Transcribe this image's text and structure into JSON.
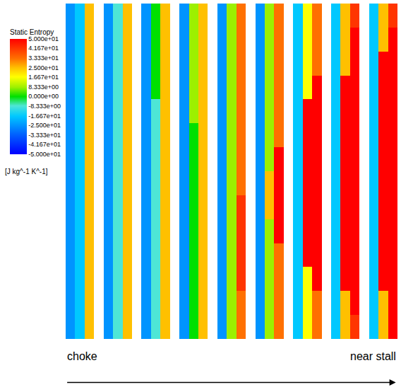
{
  "chart_data": {
    "type": "heatmap",
    "colorbar": {
      "title": "Static Entropy",
      "unit": "[J kg^-1 K^-1]",
      "range": [
        -50,
        50
      ],
      "ticks": [
        {
          "value": 50,
          "label": "5.000e+01"
        },
        {
          "value": 41.67,
          "label": "4.167e+01"
        },
        {
          "value": 33.33,
          "label": "3.333e+01"
        },
        {
          "value": 25,
          "label": "2.500e+01"
        },
        {
          "value": 16.67,
          "label": "1.667e+01"
        },
        {
          "value": 8.333,
          "label": "8.333e+00"
        },
        {
          "value": 0,
          "label": "0.000e+00"
        },
        {
          "value": -8.333,
          "label": "-8.333e+00"
        },
        {
          "value": -16.67,
          "label": "-1.667e+01"
        },
        {
          "value": -25,
          "label": "-2.500e+01"
        },
        {
          "value": -33.33,
          "label": "-3.333e+01"
        },
        {
          "value": -41.67,
          "label": "-4.167e+01"
        },
        {
          "value": -50,
          "label": "-5.000e+01"
        }
      ]
    },
    "tick_labels": false,
    "annotations": [
      "choke",
      "near stall"
    ],
    "cells": [
      [
        -25,
        -17,
        25,
        null,
        -25,
        -8,
        25,
        null,
        -25,
        0,
        25,
        null,
        -25,
        8,
        25,
        null,
        -25,
        8,
        33,
        null,
        -25,
        8,
        33,
        null,
        -17,
        17,
        33,
        null,
        -17,
        25,
        42,
        null,
        -17,
        25,
        42
      ],
      [
        -25,
        -17,
        25,
        null,
        -25,
        -8,
        25,
        null,
        -25,
        0,
        25,
        null,
        -25,
        8,
        25,
        null,
        -25,
        8,
        33,
        null,
        -25,
        8,
        33,
        null,
        -17,
        17,
        33,
        null,
        -17,
        25,
        50,
        null,
        -17,
        25,
        50
      ],
      [
        -25,
        -17,
        25,
        null,
        -25,
        -8,
        25,
        null,
        -25,
        0,
        25,
        null,
        -25,
        8,
        25,
        null,
        -25,
        8,
        33,
        null,
        -25,
        8,
        33,
        null,
        -17,
        17,
        33,
        null,
        -17,
        25,
        50,
        null,
        -17,
        50,
        50
      ],
      [
        -25,
        -17,
        25,
        null,
        -25,
        -8,
        25,
        null,
        -25,
        0,
        25,
        null,
        -25,
        8,
        25,
        null,
        -25,
        8,
        33,
        null,
        -25,
        8,
        33,
        null,
        -17,
        17,
        50,
        null,
        -17,
        50,
        50,
        null,
        -17,
        50,
        50
      ],
      [
        -25,
        -17,
        25,
        null,
        -25,
        -8,
        25,
        null,
        -25,
        -8,
        25,
        null,
        -25,
        8,
        25,
        null,
        -25,
        8,
        33,
        null,
        -25,
        8,
        33,
        null,
        -17,
        50,
        50,
        null,
        -17,
        50,
        50,
        null,
        -17,
        50,
        50
      ],
      [
        -25,
        -17,
        25,
        null,
        -25,
        -8,
        25,
        null,
        -25,
        -8,
        25,
        null,
        -25,
        0,
        25,
        null,
        -25,
        8,
        33,
        null,
        -25,
        8,
        33,
        null,
        -17,
        50,
        50,
        null,
        -17,
        50,
        50,
        null,
        -17,
        50,
        50
      ],
      [
        -25,
        -17,
        25,
        null,
        -25,
        -8,
        25,
        null,
        -25,
        -8,
        25,
        null,
        -25,
        0,
        25,
        null,
        -25,
        8,
        33,
        null,
        -25,
        8,
        50,
        null,
        -17,
        50,
        50,
        null,
        -17,
        50,
        50,
        null,
        -17,
        50,
        50
      ],
      [
        -25,
        -17,
        25,
        null,
        -25,
        -8,
        25,
        null,
        -25,
        -8,
        25,
        null,
        -25,
        0,
        25,
        null,
        -25,
        8,
        33,
        null,
        -25,
        25,
        50,
        null,
        -17,
        50,
        50,
        null,
        -17,
        50,
        50,
        null,
        -17,
        50,
        50
      ],
      [
        -25,
        -17,
        25,
        null,
        -25,
        -8,
        25,
        null,
        -25,
        -8,
        25,
        null,
        -25,
        0,
        25,
        null,
        -25,
        8,
        42,
        null,
        -25,
        25,
        50,
        null,
        -17,
        50,
        50,
        null,
        -17,
        50,
        50,
        null,
        -17,
        50,
        50
      ],
      [
        -25,
        -17,
        25,
        null,
        -25,
        -8,
        25,
        null,
        -25,
        -8,
        25,
        null,
        -25,
        0,
        25,
        null,
        -25,
        8,
        42,
        null,
        -25,
        8,
        50,
        null,
        -17,
        50,
        50,
        null,
        -17,
        50,
        50,
        null,
        -17,
        50,
        50
      ],
      [
        -25,
        -17,
        25,
        null,
        -25,
        -8,
        25,
        null,
        -25,
        -8,
        25,
        null,
        -25,
        0,
        25,
        null,
        -25,
        8,
        42,
        null,
        -25,
        8,
        33,
        null,
        -17,
        50,
        50,
        null,
        -17,
        50,
        50,
        null,
        -17,
        50,
        50
      ],
      [
        -25,
        -17,
        25,
        null,
        -25,
        -8,
        25,
        null,
        -25,
        -8,
        25,
        null,
        -25,
        0,
        25,
        null,
        -25,
        8,
        42,
        null,
        -25,
        8,
        33,
        null,
        -17,
        17,
        50,
        null,
        -17,
        50,
        50,
        null,
        -17,
        50,
        50
      ],
      [
        -25,
        -17,
        25,
        null,
        -25,
        -8,
        25,
        null,
        -25,
        -8,
        25,
        null,
        -25,
        0,
        25,
        null,
        -25,
        8,
        33,
        null,
        -25,
        8,
        33,
        null,
        -17,
        17,
        33,
        null,
        -17,
        25,
        50,
        null,
        -17,
        25,
        50
      ],
      [
        -25,
        -17,
        25,
        null,
        -25,
        -8,
        25,
        null,
        -25,
        -8,
        25,
        null,
        -25,
        0,
        25,
        null,
        -25,
        8,
        33,
        null,
        -25,
        8,
        33,
        null,
        -17,
        17,
        33,
        null,
        -17,
        25,
        42,
        null,
        -17,
        25,
        50
      ]
    ]
  }
}
